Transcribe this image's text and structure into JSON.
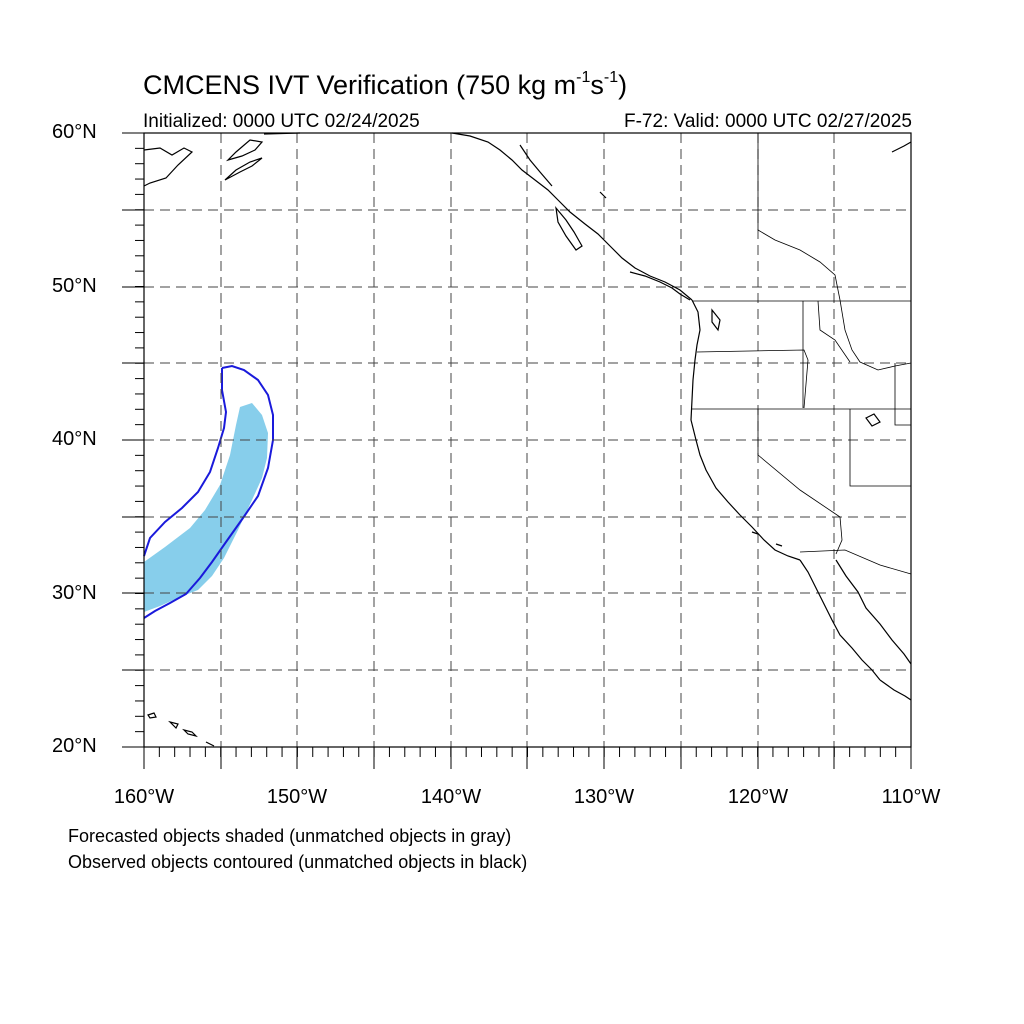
{
  "title": {
    "main": "CMCENS IVT Verification (750 kg m",
    "sup1": "-1",
    "mid": "s",
    "sup2": "-1",
    "close": ")"
  },
  "subtitle": {
    "initialized": "Initialized: 0000 UTC 02/24/2025",
    "valid": "F-72: Valid: 0000 UTC 02/27/2025"
  },
  "axes": {
    "lat_labels": [
      "60°N",
      "50°N",
      "40°N",
      "30°N",
      "20°N"
    ],
    "lon_labels": [
      "160°W",
      "150°W",
      "140°W",
      "130°W",
      "120°W",
      "110°W"
    ],
    "lat_range": [
      20,
      60
    ],
    "lon_range": [
      -160,
      -110
    ]
  },
  "legend_notes": {
    "line1": "Forecasted objects shaded (unmatched objects in gray)",
    "line2": "Observed objects contoured (unmatched objects in black)"
  },
  "colors": {
    "forecast_fill": "#87ceeb",
    "observed_contour": "#1a1adb",
    "coastline": "#000000",
    "grid": "#444444"
  }
}
